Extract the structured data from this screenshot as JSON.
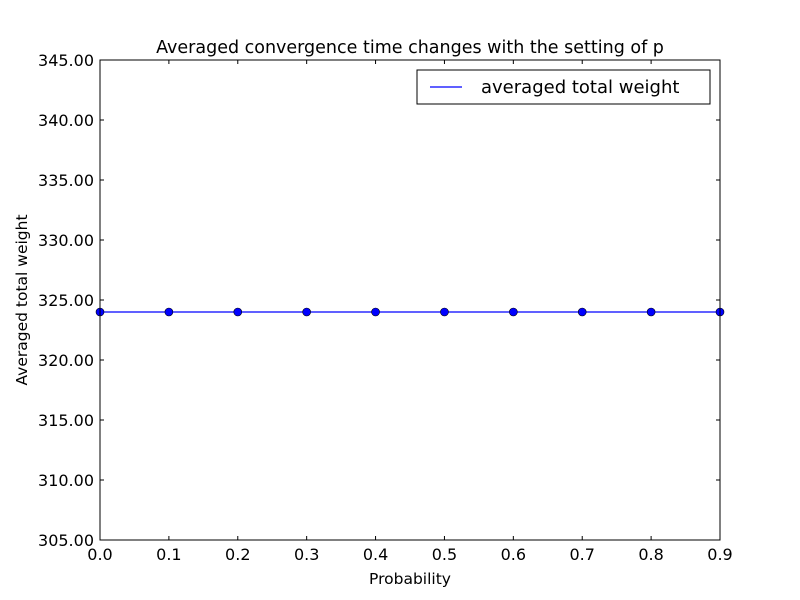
{
  "chart_data": {
    "type": "line",
    "title": "Averaged convergence time changes with the setting of p",
    "xlabel": "Probability",
    "ylabel": "Averaged total weight",
    "xlim": [
      0.0,
      0.9
    ],
    "ylim": [
      305.0,
      345.0
    ],
    "x_ticks": [
      "0.0",
      "0.1",
      "0.2",
      "0.3",
      "0.4",
      "0.5",
      "0.6",
      "0.7",
      "0.8",
      "0.9"
    ],
    "y_ticks": [
      "305.00",
      "310.00",
      "315.00",
      "320.00",
      "325.00",
      "330.00",
      "335.00",
      "340.00",
      "345.00"
    ],
    "x": [
      0.0,
      0.1,
      0.2,
      0.3,
      0.4,
      0.5,
      0.6,
      0.7,
      0.8,
      0.9
    ],
    "series": [
      {
        "name": "averaged total weight",
        "color": "#0000ff",
        "marker": "circle",
        "values": [
          324,
          324,
          324,
          324,
          324,
          324,
          324,
          324,
          324,
          324
        ]
      }
    ],
    "grid": false,
    "legend_position": "top-right"
  }
}
